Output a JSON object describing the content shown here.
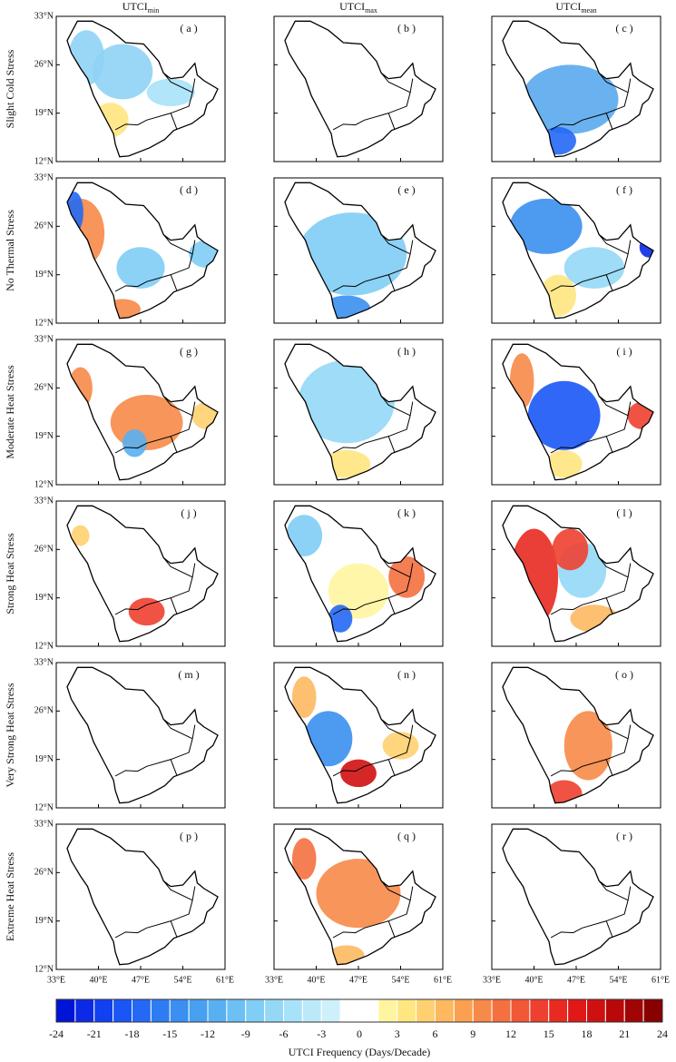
{
  "chart_data": {
    "type": "map",
    "columns": [
      {
        "text": "UTCI",
        "sub": "min"
      },
      {
        "text": "UTCI",
        "sub": "max"
      },
      {
        "text": "UTCI",
        "sub": "mean"
      }
    ],
    "rows": [
      "Slight Cold Stress",
      "No Thermal Stress",
      "Moderate Heat Stress",
      "Strong Heat Stress",
      "Very Strong Heat Stress",
      "Extreme Heat Stress"
    ],
    "panels": [
      "( a )",
      "( b )",
      "( c )",
      "( d )",
      "( e )",
      "( f )",
      "( g )",
      "( h )",
      "( i )",
      "( j )",
      "( k )",
      "( l )",
      "( m )",
      "( n )",
      "( o )",
      "( p )",
      "( q )",
      "( r )"
    ],
    "xlim": [
      33,
      61
    ],
    "ylim": [
      12,
      33
    ],
    "xticks": [
      {
        "value": 33,
        "label": "33°E"
      },
      {
        "value": 40,
        "label": "40°E"
      },
      {
        "value": 47,
        "label": "47°E"
      },
      {
        "value": 54,
        "label": "54°E"
      },
      {
        "value": 61,
        "label": "61°E"
      }
    ],
    "yticks": [
      {
        "value": 33,
        "label": "33°N"
      },
      {
        "value": 26,
        "label": "26°N"
      },
      {
        "value": 19,
        "label": "19°N"
      },
      {
        "value": 12,
        "label": "12°N"
      }
    ],
    "colorbar": {
      "label": "UTCI Frequency (Days/Decade)",
      "lim": [
        -24,
        24
      ],
      "ticks": [
        -24,
        -21,
        -18,
        -15,
        -12,
        -9,
        -6,
        -3,
        0,
        3,
        6,
        9,
        12,
        15,
        18,
        21,
        24
      ],
      "colors": [
        "#0014d8",
        "#0a2ae6",
        "#1040f0",
        "#1a56f5",
        "#2468f5",
        "#2e7cf2",
        "#3a8ff0",
        "#48a0f0",
        "#58b0f2",
        "#6cc0f4",
        "#80cdf5",
        "#94d8f6",
        "#a8e2f8",
        "#bce9f8",
        "#cef0fa",
        "#ffffff",
        "#ffffff",
        "#fff5a0",
        "#ffe680",
        "#ffd070",
        "#fdb860",
        "#faa050",
        "#f78a48",
        "#f47040",
        "#f05838",
        "#ee4030",
        "#e82a20",
        "#e01818",
        "#d01010",
        "#b80808",
        "#a00404",
        "#880000"
      ]
    }
  }
}
